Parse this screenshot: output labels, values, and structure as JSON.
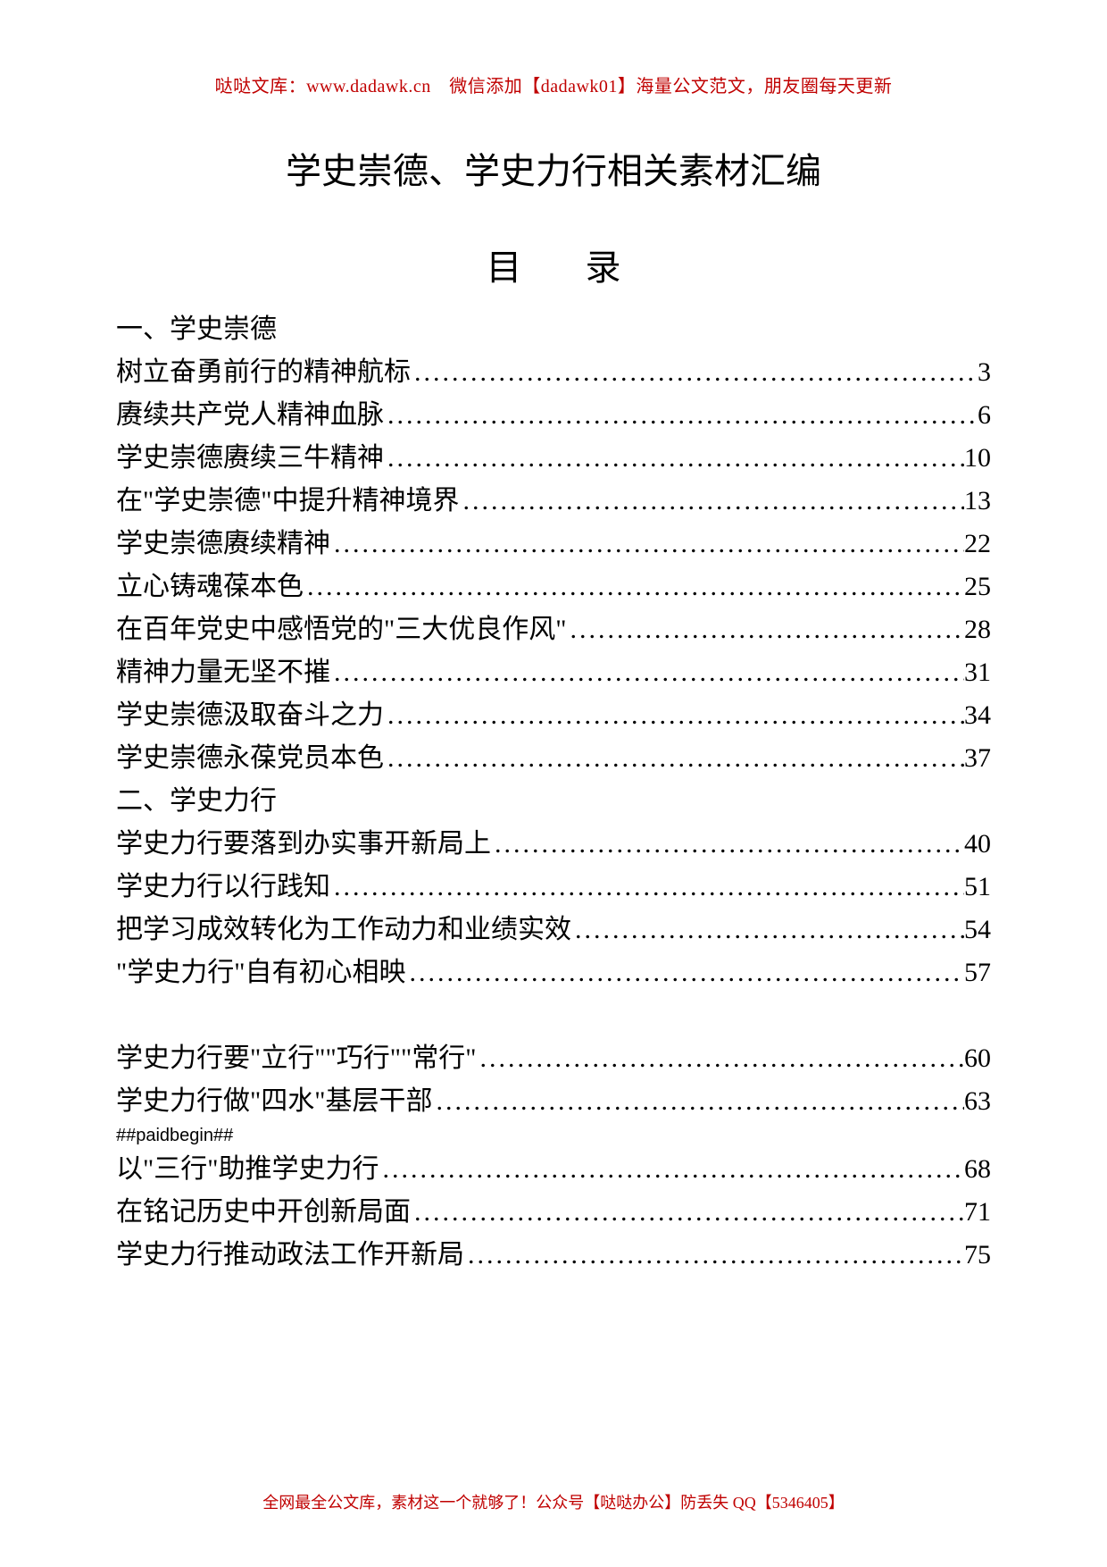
{
  "header": {
    "text": "哒哒文库：www.dadawk.cn　微信添加【dadawk01】海量公文范文，朋友圈每天更新",
    "color": "#c00000"
  },
  "title": "学史崇德、学史力行相关素材汇编",
  "toc_heading": "目 录",
  "sections": [
    {
      "heading": "一、学史崇德",
      "entries": [
        {
          "label": "树立奋勇前行的精神航标",
          "page": "3"
        },
        {
          "label": "赓续共产党人精神血脉",
          "page": "6"
        },
        {
          "label": "学史崇德赓续三牛精神",
          "page": "10"
        },
        {
          "label": "在\"学史崇德\"中提升精神境界",
          "page": "13"
        },
        {
          "label": "学史崇德赓续精神",
          "page": "22"
        },
        {
          "label": "立心铸魂葆本色",
          "page": "25"
        },
        {
          "label": "在百年党史中感悟党的\"三大优良作风\"",
          "page": "28"
        },
        {
          "label": "精神力量无坚不摧",
          "page": "31"
        },
        {
          "label": "学史崇德汲取奋斗之力",
          "page": "34"
        },
        {
          "label": "学史崇德永葆党员本色",
          "page": "37"
        }
      ]
    },
    {
      "heading": "二、学史力行",
      "entries": [
        {
          "label": "学史力行要落到办实事开新局上",
          "page": "40"
        },
        {
          "label": "学史力行以行践知",
          "page": "51"
        },
        {
          "label": "把学习成效转化为工作动力和业绩实效",
          "page": "54"
        },
        {
          "label": "\"学史力行\"自有初心相映",
          "page": "57"
        }
      ]
    }
  ],
  "after_gap_entries": [
    {
      "label": "学史力行要\"立行\"\"巧行\"\"常行\"",
      "page": "60"
    },
    {
      "label": "学史力行做\"四水\"基层干部",
      "page": "63"
    }
  ],
  "paid_marker": "##paidbegin##",
  "after_marker_entries": [
    {
      "label": "以\"三行\"助推学史力行",
      "page": "68"
    },
    {
      "label": "在铭记历史中开创新局面",
      "page": "71"
    },
    {
      "label": "学史力行推动政法工作开新局",
      "page": "75"
    }
  ],
  "footer": {
    "text": "全网最全公文库，素材这一个就够了！公众号【哒哒办公】防丢失 QQ【5346405】",
    "color": "#c00000"
  },
  "dots": "......................................................................................................"
}
